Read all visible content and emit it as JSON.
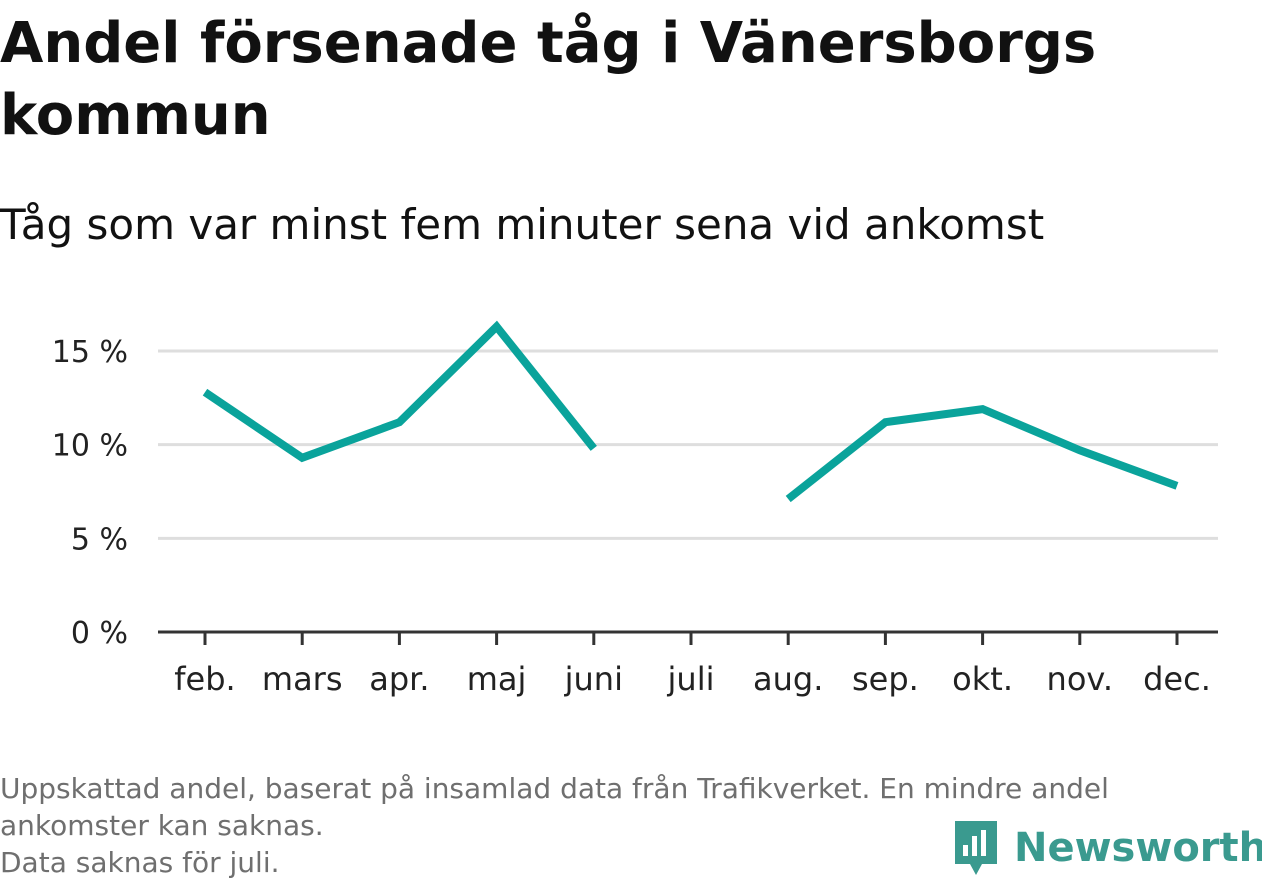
{
  "title": "Andel försenade tåg i Vänersborgs kommun",
  "subtitle": "Tåg som var minst fem minuter sena vid ankomst",
  "colors": {
    "line": "#0aa39b",
    "grid": "#dedede",
    "axis": "#333333",
    "tick_text": "#222222",
    "footnote": "#6f6f6f",
    "brand": "#3a9a8f"
  },
  "chart_data": {
    "type": "line",
    "categories": [
      "feb.",
      "mars",
      "apr.",
      "maj",
      "juni",
      "juli",
      "aug.",
      "sep.",
      "okt.",
      "nov.",
      "dec."
    ],
    "series": [
      {
        "values": [
          12.8,
          9.3,
          11.2,
          16.3,
          9.8,
          null,
          7.1,
          11.2,
          11.9,
          9.7,
          7.8
        ]
      }
    ],
    "y_ticks": [
      0,
      5,
      10,
      15
    ],
    "y_tick_labels": [
      "0 %",
      "5 %",
      "10 %",
      "15 %"
    ],
    "ylim": [
      0,
      16.5
    ],
    "grid": "horizontal",
    "xlabel": "",
    "ylabel": ""
  },
  "footnote": {
    "line1": "Uppskattad andel, baserat på insamlad data från Trafikverket. En mindre andel",
    "line2": "ankomster kan saknas.",
    "line3": "Data saknas för juli."
  },
  "brand": {
    "name": "Newsworthy",
    "icon": "newsworthy-logo-icon"
  }
}
